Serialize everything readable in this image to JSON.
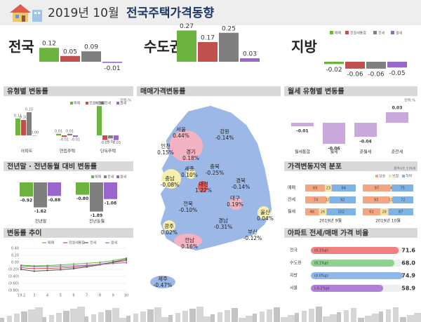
{
  "header": {
    "date": "2019년 10월",
    "title": "전국주택가격동향"
  },
  "legend": [
    {
      "name": "매매",
      "color": "#6cb33f"
    },
    {
      "name": "전월세통합",
      "color": "#c0504d"
    },
    {
      "name": "전세",
      "color": "#7f7f7f"
    },
    {
      "name": "월세",
      "color": "#9966cc"
    }
  ],
  "summary": [
    {
      "region": "전국",
      "values": [
        0.12,
        0.05,
        0.09,
        -0.01
      ],
      "value_labels": [
        "0.12",
        "0.05",
        "0.09",
        "-0.01"
      ]
    },
    {
      "region": "수도권",
      "values": [
        0.27,
        0.17,
        0.25,
        0.03
      ],
      "value_labels": [
        "0.27",
        "0.17",
        "0.25",
        "0.03"
      ]
    },
    {
      "region": "지방",
      "values": [
        -0.02,
        -0.06,
        -0.06,
        -0.05
      ],
      "value_labels": [
        "-0.02",
        "-0.06",
        "-0.06",
        "-0.05"
      ]
    }
  ],
  "by_type": {
    "title": "유형별 변동률",
    "unit": "단위:%",
    "categories": [
      "아파트",
      "연립주택",
      "단독주택"
    ],
    "values": [
      [
        0.11,
        0.1,
        0.15,
        0
      ],
      [
        0.01,
        -0.01,
        0.01,
        -0.01
      ],
      [
        0.19,
        -0.03,
        -0.02,
        -0.03
      ]
    ],
    "value_labels": [
      [
        "0.11",
        "0.10",
        "0.15",
        "0.00"
      ],
      [
        "0.01",
        "-0.01",
        "0.01",
        "-0.01"
      ],
      [
        "0.19",
        "-0.03",
        "-0.02",
        "-0.03"
      ]
    ]
  },
  "yoy": {
    "title": "전년말 · 전년동월 대비 변동률",
    "legend": [
      "매매",
      "전세",
      "월세"
    ],
    "categories": [
      "전년말",
      "전년동월"
    ],
    "values": [
      [
        -0.92,
        -1.62,
        -0.88
      ],
      [
        -0.8,
        -1.89,
        -1.08
      ]
    ],
    "value_labels": [
      [
        "-0.92",
        "-1.62",
        "-0.88"
      ],
      [
        "-0.80",
        "-1.89",
        "-1.08"
      ]
    ]
  },
  "trend": {
    "title": "변동률 추이",
    "categories": [
      "'19.2",
      "3",
      "4",
      "5",
      "6",
      "7",
      "8",
      "9",
      "10"
    ],
    "ylim": [
      -0.8,
      0.4
    ],
    "yticks": [
      {
        "value": 0.4,
        "label": "0.40"
      },
      {
        "value": 0.2,
        "label": "0.20"
      },
      {
        "value": 0,
        "label": "0.00"
      },
      {
        "value": -0.2,
        "label": "(0.20)"
      },
      {
        "value": -0.4,
        "label": "(0.40)"
      },
      {
        "value": -0.6,
        "label": "(0.60)"
      },
      {
        "value": -0.8,
        "label": "(0.80)"
      }
    ],
    "series": [
      {
        "name": "매매",
        "color": "#6cb33f",
        "values": [
          -0.08,
          -0.1,
          -0.09,
          -0.07,
          -0.05,
          -0.03,
          0,
          0.05,
          0.12
        ]
      },
      {
        "name": "전월세통합",
        "color": "#c0504d",
        "values": [
          -0.15,
          -0.18,
          -0.17,
          -0.16,
          -0.14,
          -0.1,
          -0.05,
          0,
          0.05
        ]
      },
      {
        "name": "전세",
        "color": "#555555",
        "values": [
          -0.2,
          -0.25,
          -0.23,
          -0.21,
          -0.18,
          -0.13,
          -0.07,
          0.01,
          0.09
        ]
      },
      {
        "name": "월세",
        "color": "#9966cc",
        "values": [
          -0.1,
          -0.12,
          -0.12,
          -0.11,
          -0.1,
          -0.08,
          -0.06,
          -0.03,
          -0.01
        ]
      }
    ]
  },
  "map": {
    "title": "매매가격변동률",
    "regions": [
      {
        "name": "서울",
        "value": "0.44%"
      },
      {
        "name": "강원",
        "value": "-0.14%"
      },
      {
        "name": "인천",
        "value": "0.15%"
      },
      {
        "name": "경기",
        "value": "0.18%"
      },
      {
        "name": "충북",
        "value": "-0.25%"
      },
      {
        "name": "세종",
        "value": "0.10%"
      },
      {
        "name": "충남",
        "value": "-0.08%"
      },
      {
        "name": "대전",
        "value": "1.22%"
      },
      {
        "name": "경북",
        "value": "-0.14%"
      },
      {
        "name": "전북",
        "value": "-0.10%"
      },
      {
        "name": "대구",
        "value": "0.19%"
      },
      {
        "name": "울산",
        "value": "0.04%"
      },
      {
        "name": "경남",
        "value": "-0.31%"
      },
      {
        "name": "광주",
        "value": "0.02%"
      },
      {
        "name": "전남",
        "value": "0.16%"
      },
      {
        "name": "부산",
        "value": "-0.12%"
      },
      {
        "name": "제주",
        "value": "-0.47%"
      }
    ]
  },
  "rent_type": {
    "title": "월세 유형별 변동률",
    "unit": "단위:%",
    "color": "#c9a9dc",
    "categories": [
      "월세통합",
      "월세",
      "준월세",
      "준전세"
    ],
    "values": [
      -0.01,
      -0.06,
      -0.04,
      0.03
    ],
    "value_labels": [
      "-0.01",
      "-0.06",
      "-0.04",
      "0.03"
    ]
  },
  "distribution": {
    "title": "가격변동지역 분포",
    "unit": "광역시도 176개",
    "legend": [
      {
        "name": "상승",
        "color": "#f4a582"
      },
      {
        "name": "보합",
        "color": "#f7e3a1"
      },
      {
        "name": "하락",
        "color": "#7fb2e5"
      }
    ],
    "rows": [
      "매매",
      "전세",
      "월세"
    ],
    "periods": [
      "2019년 9월",
      "2019년 10월"
    ],
    "values": [
      [
        [
          69,
          23,
          84
        ],
        [
          74,
          10,
          92
        ],
        [
          48,
          26,
          102
        ]
      ],
      [
        [
          97,
          4,
          75
        ],
        [
          93,
          11,
          72
        ],
        [
          61,
          28,
          87
        ]
      ]
    ]
  },
  "ratio": {
    "title": "아파트 전세/매매 가격 비율",
    "rows": [
      {
        "name": "전국",
        "change": "(0.1%p)",
        "value": 71.6,
        "value_label": "71.6",
        "color": "#f08080"
      },
      {
        "name": "수도권",
        "change": "(0.1%p)",
        "value": 68,
        "value_label": "68.0",
        "color": "#8fd18f"
      },
      {
        "name": "지방",
        "change": "(0.0%p)",
        "value": 74.9,
        "value_label": "74.9",
        "color": "#8fb8e8"
      },
      {
        "name": "서울",
        "change": "(-0.2%p)",
        "value": 58.9,
        "value_label": "58.9",
        "color": "#b07fd8"
      }
    ]
  }
}
